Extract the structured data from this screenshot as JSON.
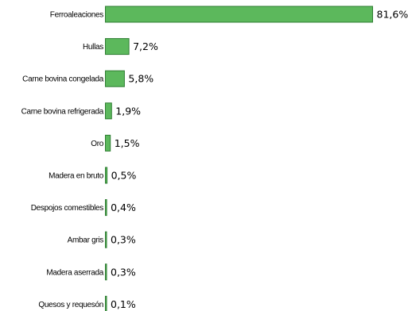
{
  "chart_data": {
    "type": "bar",
    "orientation": "horizontal",
    "categories": [
      "Ferroaleaciones",
      "Hullas",
      "Carne bovina congelada",
      "Carne bovina refrigerada",
      "Oro",
      "Madera en bruto",
      "Despojos comestibles",
      "Ambar gris",
      "Madera aserrada",
      "Quesos y requesón"
    ],
    "values": [
      81.6,
      7.2,
      5.8,
      1.9,
      1.5,
      0.5,
      0.4,
      0.3,
      0.3,
      0.1
    ],
    "value_labels": [
      "81,6%",
      "7,2%",
      "5,8%",
      "1,9%",
      "1,5%",
      "0,5%",
      "0,4%",
      "0,3%",
      "0,3%",
      "0,1%"
    ],
    "title": "",
    "xlabel": "",
    "ylabel": "",
    "xlim": [
      0,
      81.6
    ],
    "grid": false,
    "legend": "none",
    "colors": {
      "bar_fill": "#5cb85c",
      "bar_stroke": "#2e7d32"
    }
  }
}
